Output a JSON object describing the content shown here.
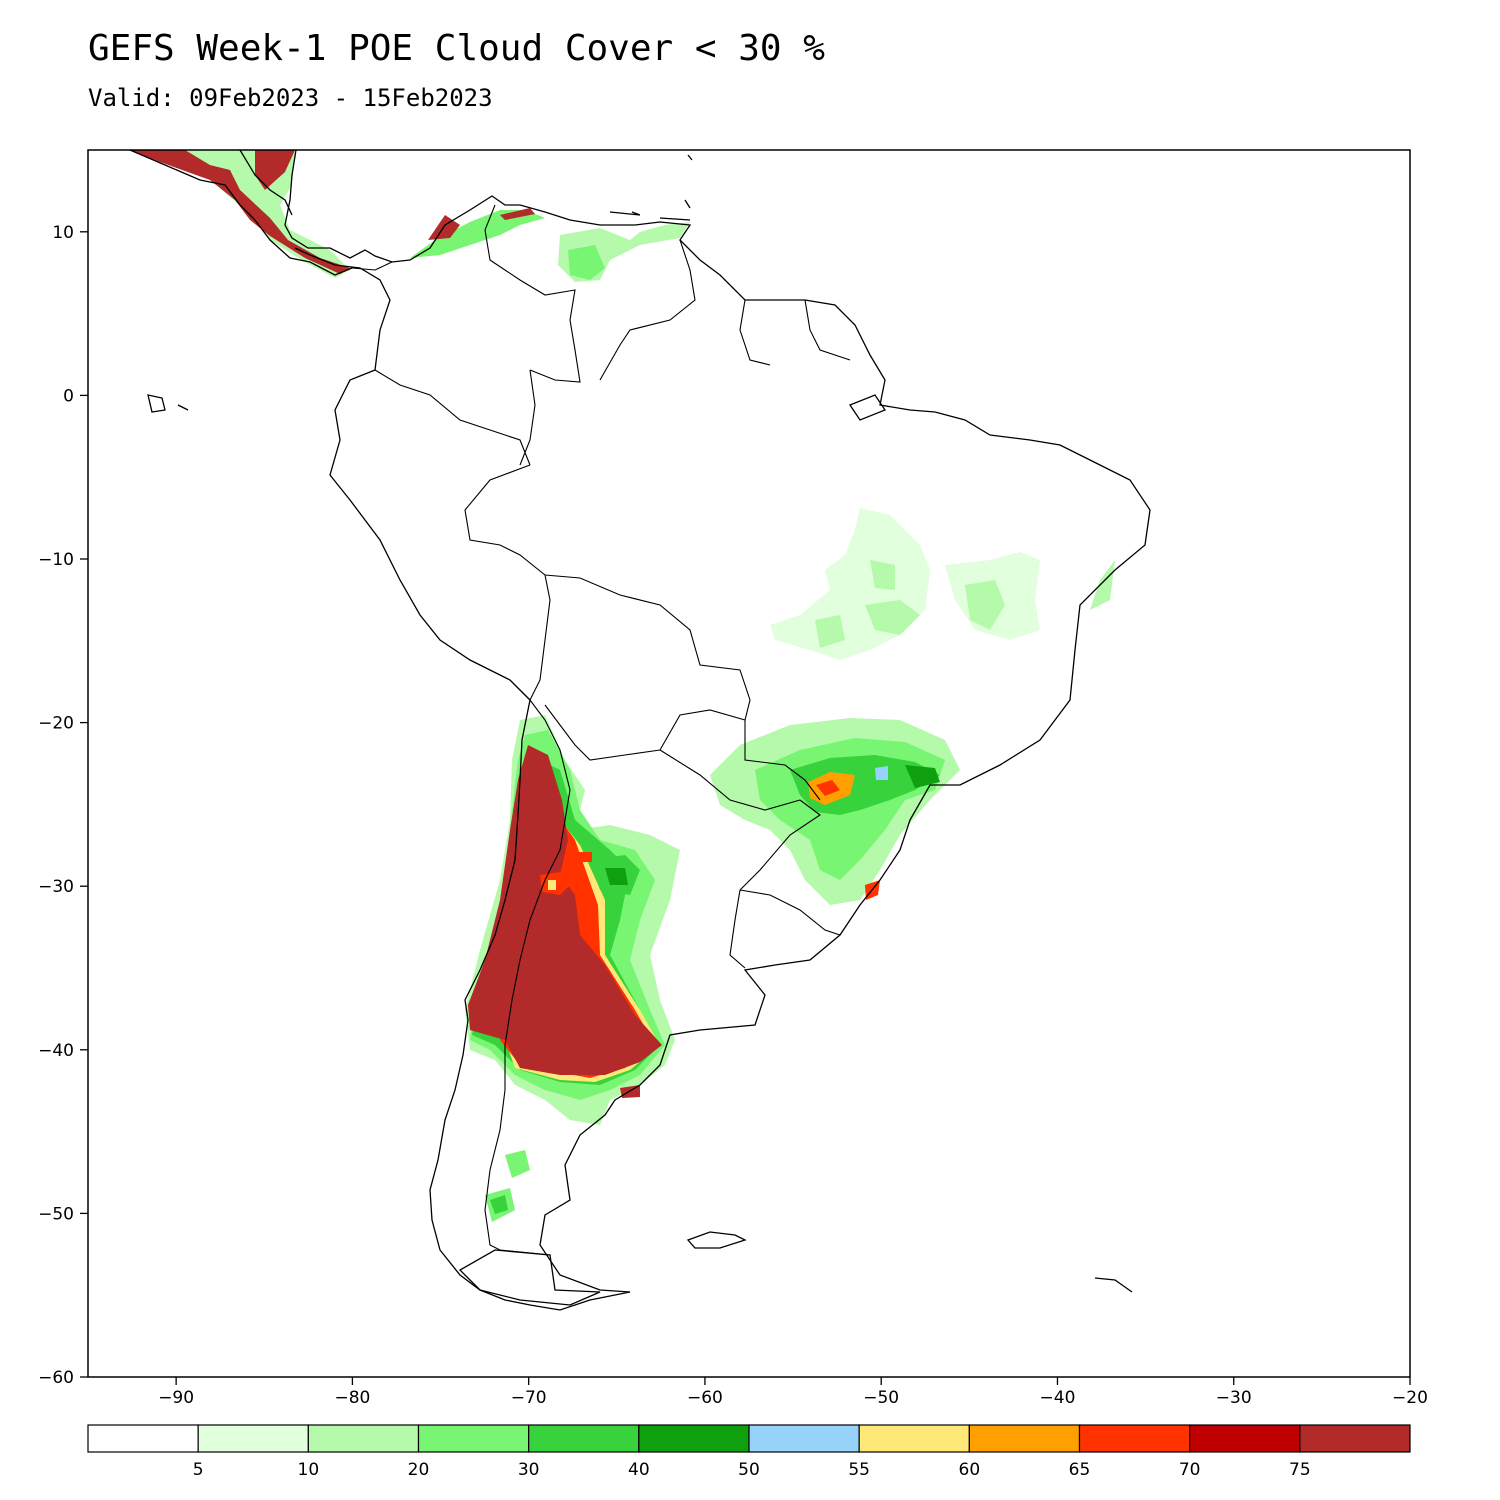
{
  "title": "GEFS Week-1 POE Cloud Cover < 30 %",
  "subtitle": "Valid: 09Feb2023 - 15Feb2023",
  "map": {
    "lon_range": [
      -95,
      -20
    ],
    "lat_range": [
      -60,
      15
    ],
    "x_ticks": [
      -90,
      -80,
      -70,
      -60,
      -50,
      -40,
      -30,
      -20
    ],
    "y_ticks": [
      10,
      0,
      -10,
      -20,
      -30,
      -40,
      -50,
      -60
    ]
  },
  "colorbar": {
    "colors": [
      "#ffffff",
      "#e1ffdc",
      "#b4faaa",
      "#78f573",
      "#37d23c",
      "#0fa00f",
      "#96d2fa",
      "#ffe878",
      "#ffa000",
      "#ff3200",
      "#c00000",
      "#b22a2a"
    ],
    "labels": [
      "5",
      "10",
      "20",
      "30",
      "40",
      "50",
      "55",
      "60",
      "65",
      "70",
      "75"
    ]
  }
}
